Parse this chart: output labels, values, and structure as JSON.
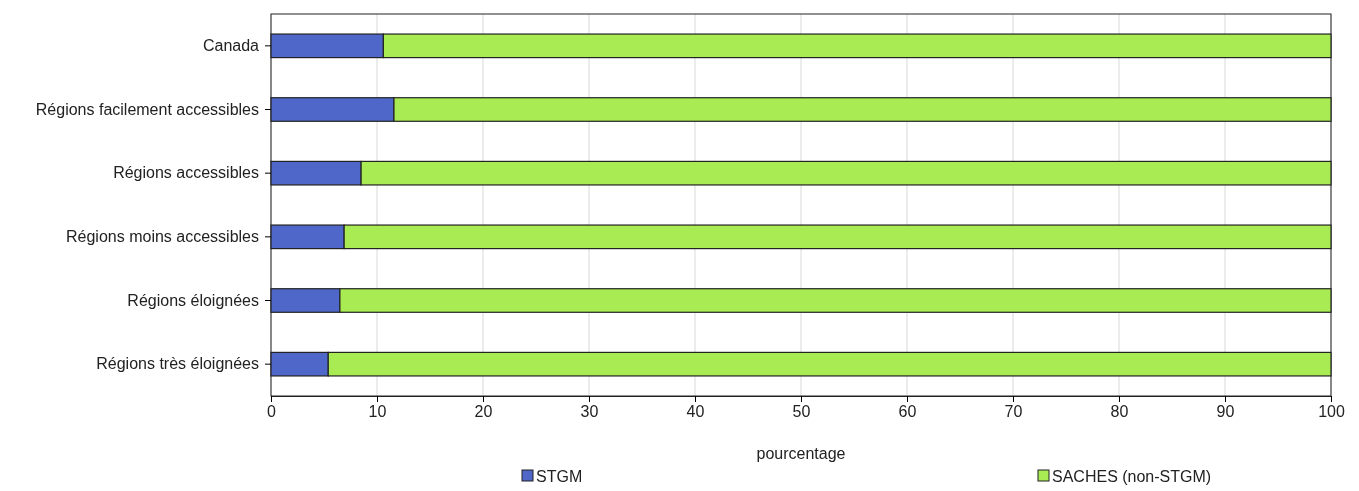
{
  "chart_data": {
    "type": "bar",
    "orientation": "horizontal",
    "stacked": true,
    "categories": [
      "Canada",
      "Régions facilement accessibles",
      "Régions accessibles",
      "Régions moins accessibles",
      "Régions éloignées",
      "Régions très éloignées"
    ],
    "series": [
      {
        "name": "STGM",
        "color": "#4f67c9",
        "values": [
          10.6,
          11.6,
          8.5,
          6.9,
          6.5,
          5.4
        ]
      },
      {
        "name": "SACHES (non-STGM)",
        "color": "#a8eb52",
        "values": [
          89.4,
          88.4,
          91.5,
          93.1,
          93.5,
          94.6
        ]
      }
    ],
    "xlim": [
      0,
      100
    ],
    "xticks": [
      0,
      10,
      20,
      30,
      40,
      50,
      60,
      70,
      80,
      90,
      100
    ],
    "xlabel": "pourcentage",
    "grid": "x",
    "legend": "bottom"
  }
}
